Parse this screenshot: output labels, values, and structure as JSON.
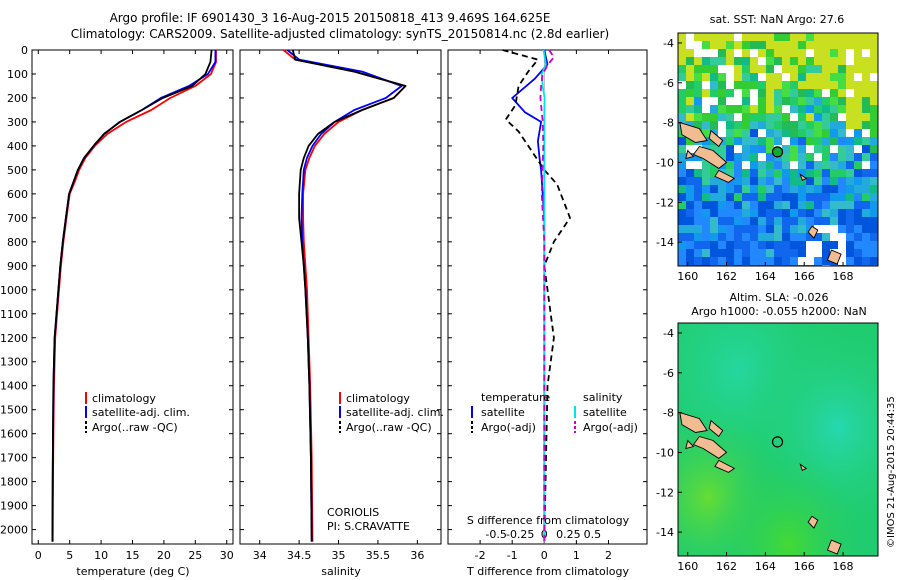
{
  "header": {
    "line1": "Argo profile: IF 6901430_3 16-Aug-2015 20150818_413 9.469S 164.625E",
    "line2": "Climatology: CARS2009. Satellite-adjusted climatology: synTS_20150814.nc (2.8d earlier)"
  },
  "side_stamp": "©IMOS 21-Aug-2015 20:44:35",
  "colors": {
    "climatology": "#ff0000",
    "satellite": "#0000ff",
    "argo": "#000000",
    "salinity_sat": "#00e5e5",
    "salinity_argo": "#cc00cc"
  },
  "chart_data": [
    {
      "type": "line",
      "id": "temperature",
      "xlabel": "temperature (deg C)",
      "ylabel": "",
      "xlim": [
        -1,
        31
      ],
      "ylim": [
        2060,
        0
      ],
      "xticks": [
        0,
        5,
        10,
        15,
        20,
        25,
        30
      ],
      "yticks": [
        0,
        100,
        200,
        300,
        400,
        500,
        600,
        700,
        800,
        900,
        1000,
        1100,
        1200,
        1300,
        1400,
        1500,
        1600,
        1700,
        1800,
        1900,
        2000
      ],
      "legend": [
        "climatology",
        "satellite-adj. clim.",
        "Argo(..raw -QC)"
      ],
      "series": [
        {
          "name": "climatology",
          "color": "#ff0000",
          "x": [
            28.3,
            28.3,
            27.5,
            25,
            21,
            18,
            14,
            11,
            9,
            7.5,
            6.5,
            5.8,
            5,
            4.5,
            4,
            3.6,
            3.3,
            3,
            2.7,
            2.5,
            2.4,
            2.35,
            2.3
          ],
          "y": [
            0,
            50,
            100,
            150,
            200,
            250,
            300,
            350,
            400,
            450,
            500,
            550,
            600,
            700,
            800,
            900,
            1000,
            1100,
            1200,
            1400,
            1600,
            1800,
            2050
          ]
        },
        {
          "name": "satellite-adj. clim.",
          "color": "#0000ff",
          "x": [
            28.2,
            28.2,
            27,
            24,
            19.5,
            16.5,
            13,
            10.5,
            8.8,
            7.3,
            6.3,
            5.6,
            4.9,
            4.4,
            3.9,
            3.5,
            3.2,
            2.9,
            2.6,
            2.4,
            2.35,
            2.3,
            2.25
          ],
          "y": [
            0,
            50,
            100,
            150,
            200,
            250,
            300,
            350,
            400,
            450,
            500,
            550,
            600,
            700,
            800,
            900,
            1000,
            1100,
            1200,
            1400,
            1600,
            1800,
            2050
          ]
        },
        {
          "name": "Argo(..raw -QC)",
          "color": "#000000",
          "x": [
            27.6,
            27.4,
            26.6,
            24.5,
            19.8,
            16.5,
            13,
            10.5,
            8.8,
            7.3,
            6.3,
            5.6,
            4.9,
            4.4,
            3.9,
            3.5,
            3.2,
            2.9,
            2.6,
            2.4,
            2.35,
            2.3,
            2.25
          ],
          "y": [
            0,
            50,
            100,
            150,
            200,
            250,
            300,
            350,
            400,
            450,
            500,
            550,
            600,
            700,
            800,
            900,
            1000,
            1100,
            1200,
            1400,
            1600,
            1800,
            2050
          ]
        }
      ]
    },
    {
      "type": "line",
      "id": "salinity",
      "xlabel": "salinity",
      "ylabel": "",
      "xlim": [
        33.75,
        36.3
      ],
      "ylim": [
        2060,
        0
      ],
      "xticks": [
        34,
        34.5,
        35,
        35.5,
        36
      ],
      "legend": [
        "climatology",
        "satellite-adj. clim.",
        "Argo(..raw -QC)"
      ],
      "annotation": [
        "CORIOLIS",
        "PI: S.CRAVATTE"
      ],
      "series": [
        {
          "name": "climatology",
          "color": "#ff0000",
          "x": [
            34.3,
            34.45,
            35.2,
            35.85,
            35.7,
            35.3,
            35.0,
            34.82,
            34.7,
            34.63,
            34.58,
            34.55,
            34.55,
            34.56,
            34.58,
            34.6,
            34.62,
            34.64,
            34.66,
            34.67
          ],
          "y": [
            0,
            40,
            90,
            150,
            200,
            250,
            300,
            350,
            400,
            450,
            500,
            600,
            700,
            800,
            900,
            1000,
            1200,
            1400,
            1700,
            2050
          ]
        },
        {
          "name": "satellite-adj. clim.",
          "color": "#0000ff",
          "x": [
            34.35,
            34.5,
            35.3,
            35.8,
            35.6,
            35.2,
            34.95,
            34.78,
            34.67,
            34.6,
            34.56,
            34.54,
            34.53,
            34.54,
            34.56,
            34.58,
            34.61,
            34.63,
            34.65,
            34.66
          ],
          "y": [
            0,
            40,
            90,
            150,
            200,
            250,
            300,
            350,
            400,
            450,
            500,
            600,
            700,
            800,
            900,
            1000,
            1200,
            1400,
            1700,
            2050
          ]
        },
        {
          "name": "Argo(..raw -QC)",
          "color": "#000000",
          "x": [
            34.42,
            34.45,
            35.2,
            35.85,
            35.7,
            35.3,
            34.95,
            34.74,
            34.62,
            34.56,
            34.52,
            34.5,
            34.5,
            34.53,
            34.56,
            34.58,
            34.61,
            34.63,
            34.65,
            34.66
          ],
          "y": [
            0,
            40,
            90,
            150,
            200,
            250,
            300,
            350,
            400,
            450,
            500,
            600,
            700,
            800,
            900,
            1000,
            1200,
            1400,
            1700,
            2050
          ]
        }
      ]
    },
    {
      "type": "line",
      "id": "difference",
      "xlabel": "T difference from climatology",
      "x2label": "S difference from climatology",
      "xlim": [
        -3,
        3.2
      ],
      "ylim": [
        2060,
        0
      ],
      "xticks": [
        -2,
        -1,
        0,
        1,
        2
      ],
      "x2ticks": [
        -0.5,
        -0.25,
        0,
        0.25,
        0.5
      ],
      "legend_titles": [
        "temperature",
        "salinity"
      ],
      "legend": [
        "satellite",
        "Argo(-adj)",
        "satellite",
        "Argo(-adj)"
      ],
      "series": [
        {
          "name": "satellite",
          "color": "#0000ff",
          "x": [
            0,
            0.1,
            -0.3,
            -1.0,
            -0.6,
            -0.1,
            -0.2,
            -0.15,
            -0.1,
            -0.05,
            0,
            0,
            0,
            0,
            0
          ],
          "y": [
            0,
            60,
            120,
            200,
            260,
            300,
            380,
            450,
            500,
            600,
            700,
            900,
            1200,
            1600,
            2050
          ]
        },
        {
          "name": "Argo(-adj)",
          "color": "#000000",
          "dash": "6,4",
          "x": [
            -1.3,
            -0.2,
            -0.5,
            -0.8,
            -0.9,
            -1.2,
            -0.8,
            -0.4,
            0,
            0.4,
            0.8,
            0.3,
            0,
            0.3,
            0.1,
            0
          ],
          "y": [
            0,
            40,
            90,
            150,
            230,
            290,
            340,
            420,
            500,
            560,
            700,
            800,
            900,
            1200,
            1400,
            2050
          ]
        },
        {
          "name": "satellite",
          "color": "#00e5e5",
          "x": [
            -0.02,
            0.05,
            -0.08,
            -0.05,
            0.01,
            0,
            0,
            0,
            0,
            0
          ],
          "y": [
            0,
            60,
            100,
            150,
            200,
            260,
            350,
            600,
            1200,
            2050
          ]
        },
        {
          "name": "Argo(-adj)",
          "color": "#cc00cc",
          "dash": "6,4",
          "x": [
            0.15,
            0.3,
            0.12,
            -0.05,
            -0.1,
            -0.12,
            -0.05,
            -0.03,
            -0.08,
            0,
            0,
            0
          ],
          "y": [
            0,
            30,
            60,
            100,
            150,
            200,
            300,
            400,
            600,
            800,
            1200,
            2050
          ]
        }
      ]
    }
  ],
  "maps": [
    {
      "title": "sat. SST: NaN Argo: 27.6",
      "xticks": [
        "160",
        "162",
        "164",
        "166",
        "168"
      ],
      "yticks": [
        "-4",
        "-6",
        "-8",
        "-10",
        "-12",
        "-14"
      ],
      "xlim": [
        159.5,
        169.8
      ],
      "ylim": [
        -15.2,
        -3.5
      ],
      "argo_lon": 164.625,
      "argo_lat": -9.469
    },
    {
      "title_line1": "Altim. SLA: -0.026",
      "title_line2": "Argo h1000: -0.055 h2000: NaN",
      "xticks": [
        "160",
        "162",
        "164",
        "166",
        "168"
      ],
      "yticks": [
        "-4",
        "-6",
        "-8",
        "-10",
        "-12",
        "-14"
      ],
      "xlim": [
        159.5,
        169.8
      ],
      "ylim": [
        -15.2,
        -3.5
      ],
      "argo_lon": 164.625,
      "argo_lat": -9.469
    }
  ]
}
